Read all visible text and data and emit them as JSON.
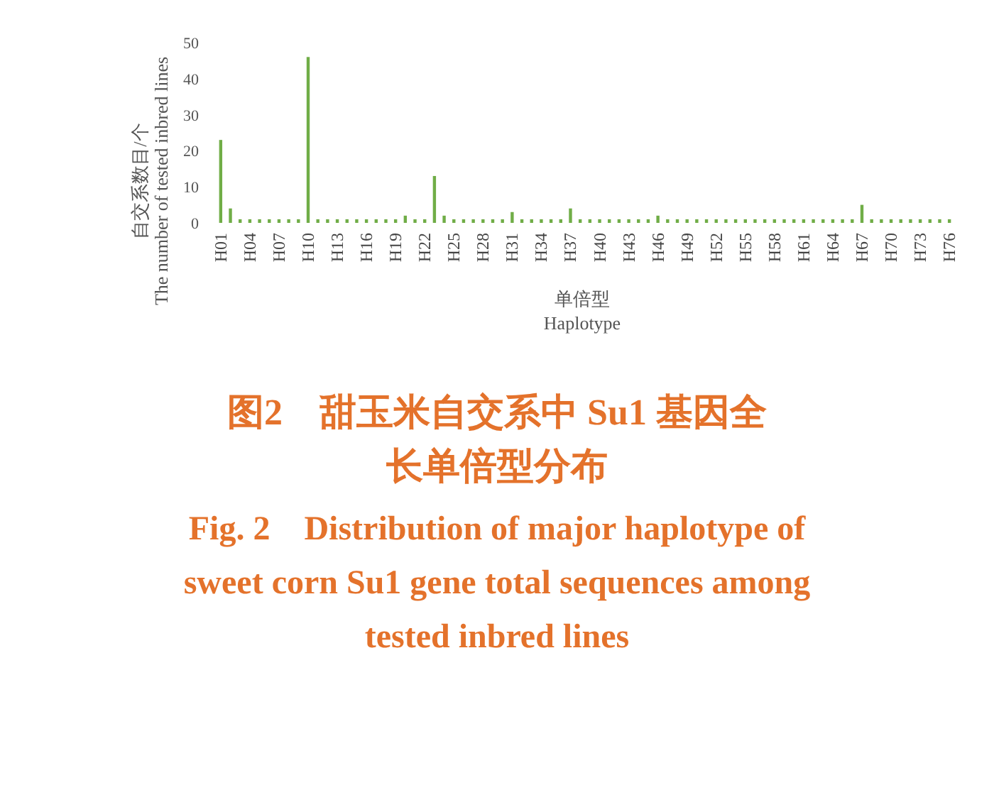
{
  "chart_data": {
    "type": "bar",
    "title": "图2　甜玉米自交系中 Su1 基因全长单倍型分布",
    "subtitle": "Fig. 2　Distribution of major haplotype of sweet corn Su1 gene total sequences among tested inbred lines",
    "xlabel": "单倍型\nHaplotype",
    "ylabel": "自交系数目/个\nThe number of tested inbred lines",
    "categories": [
      "H01",
      null,
      null,
      "H04",
      null,
      null,
      "H07",
      null,
      null,
      "H10",
      null,
      null,
      "H13",
      null,
      null,
      "H16",
      null,
      null,
      "H19",
      null,
      null,
      "H22",
      null,
      null,
      "H25",
      null,
      null,
      "H28",
      null,
      null,
      "H31",
      null,
      null,
      "H34",
      null,
      null,
      "H37",
      null,
      null,
      "H40",
      null,
      null,
      "H43",
      null,
      null,
      "H46",
      null,
      null,
      "H49",
      null,
      null,
      "H52",
      null,
      null,
      "H55",
      null,
      null,
      "H58",
      null,
      null,
      "H61",
      null,
      null,
      "H64",
      null,
      null,
      "H67",
      null,
      null,
      "H70",
      null,
      null,
      "H73",
      null,
      null,
      "H76"
    ],
    "values": [
      23,
      4,
      1,
      1,
      1,
      1,
      1,
      1,
      1,
      46,
      1,
      1,
      1,
      1,
      1,
      1,
      1,
      1,
      1,
      2,
      1,
      1,
      13,
      2,
      1,
      1,
      1,
      1,
      1,
      1,
      3,
      1,
      1,
      1,
      1,
      1,
      4,
      1,
      1,
      1,
      1,
      1,
      1,
      1,
      1,
      2,
      1,
      1,
      1,
      1,
      1,
      1,
      1,
      1,
      1,
      1,
      1,
      1,
      1,
      1,
      1,
      1,
      1,
      1,
      1,
      1,
      5,
      1,
      1,
      1,
      1,
      1,
      1,
      1,
      1,
      1
    ],
    "color": "#70ad47",
    "ylim": [
      0,
      50
    ],
    "yticks": [
      0,
      10,
      20,
      30,
      40,
      50
    ]
  }
}
